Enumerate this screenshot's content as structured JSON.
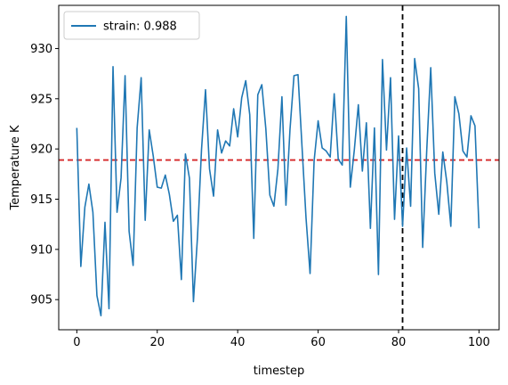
{
  "chart_data": {
    "type": "line",
    "xlabel": "timestep",
    "ylabel": "Temperature K",
    "xlim": [
      -4.5,
      105
    ],
    "ylim": [
      902,
      934.3
    ],
    "xticks": [
      0,
      20,
      40,
      60,
      80,
      100
    ],
    "yticks": [
      905,
      910,
      915,
      920,
      925,
      930
    ],
    "legend_position": "top-left",
    "series": [
      {
        "name": "strain: 0.988",
        "color": "#1f77b4",
        "x": [
          0,
          1,
          2,
          3,
          4,
          5,
          6,
          7,
          8,
          9,
          10,
          11,
          12,
          13,
          14,
          15,
          16,
          17,
          18,
          19,
          20,
          21,
          22,
          23,
          24,
          25,
          26,
          27,
          28,
          29,
          30,
          31,
          32,
          33,
          34,
          35,
          36,
          37,
          38,
          39,
          40,
          41,
          42,
          43,
          44,
          45,
          46,
          47,
          48,
          49,
          50,
          51,
          52,
          53,
          54,
          55,
          56,
          57,
          58,
          59,
          60,
          61,
          62,
          63,
          64,
          65,
          66,
          67,
          68,
          69,
          70,
          71,
          72,
          73,
          74,
          75,
          76,
          77,
          78,
          79,
          80,
          81,
          82,
          83,
          84,
          85,
          86,
          87,
          88,
          89,
          90,
          91,
          92,
          93,
          94,
          95,
          96,
          97,
          98,
          99,
          100
        ],
        "y": [
          922.1,
          908.3,
          914.2,
          916.5,
          913.7,
          905.4,
          903.4,
          912.7,
          904.1,
          928.2,
          913.7,
          917.1,
          927.3,
          911.8,
          908.4,
          922.1,
          927.1,
          912.9,
          921.9,
          919.3,
          916.2,
          916.1,
          917.4,
          915.5,
          912.8,
          913.4,
          907.0,
          919.5,
          917.1,
          904.8,
          911.2,
          919.9,
          925.9,
          918.0,
          915.3,
          921.9,
          919.6,
          920.8,
          920.3,
          924.0,
          921.2,
          925.1,
          926.8,
          923.4,
          911.1,
          925.4,
          926.4,
          922.0,
          915.4,
          914.3,
          918.0,
          925.2,
          914.4,
          921.9,
          927.3,
          927.4,
          920.2,
          913.1,
          907.6,
          918.8,
          922.8,
          920.1,
          919.8,
          919.2,
          925.5,
          919.0,
          918.4,
          933.2,
          916.2,
          919.9,
          924.4,
          917.8,
          922.6,
          912.1,
          922.1,
          907.5,
          928.9,
          919.9,
          927.1,
          913.0,
          921.3,
          912.3,
          920.1,
          914.3,
          929.0,
          926.0,
          910.2,
          919.8,
          928.1,
          917.6,
          913.5,
          919.7,
          916.7,
          912.3,
          925.2,
          923.5,
          919.8,
          919.2,
          923.3,
          922.3,
          912.1
        ]
      }
    ],
    "reference_lines": [
      {
        "orientation": "horizontal",
        "value": 918.9,
        "color": "#d62728",
        "style": "dashed"
      },
      {
        "orientation": "vertical",
        "value": 81,
        "color": "#000000",
        "style": "dashed"
      }
    ]
  }
}
